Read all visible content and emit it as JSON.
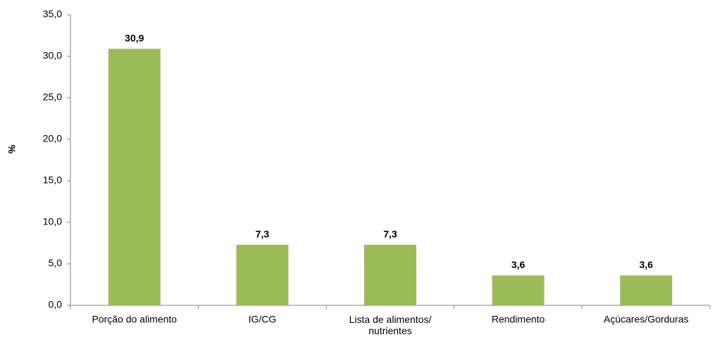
{
  "chart_data": {
    "type": "bar",
    "ylabel": "%",
    "categories": [
      "Porção do alimento",
      "IG/CG",
      "Lista de alimentos/ nutrientes",
      "Rendimento",
      "Açúcares/Gorduras"
    ],
    "values": [
      30.9,
      7.3,
      7.3,
      3.6,
      3.6
    ],
    "value_labels": [
      "30,9",
      "7,3",
      "7,3",
      "3,6",
      "3,6"
    ],
    "color": "#9bbb59",
    "ylim": [
      0,
      35
    ],
    "yticks": [
      {
        "value": 0,
        "label": "0,0"
      },
      {
        "value": 5,
        "label": "5,0"
      },
      {
        "value": 10,
        "label": "10,0"
      },
      {
        "value": 15,
        "label": "15,0"
      },
      {
        "value": 20,
        "label": "20,0"
      },
      {
        "value": 25,
        "label": "25,0"
      },
      {
        "value": 30,
        "label": "30,0"
      },
      {
        "value": 35,
        "label": "35,0"
      }
    ],
    "grid": false
  }
}
